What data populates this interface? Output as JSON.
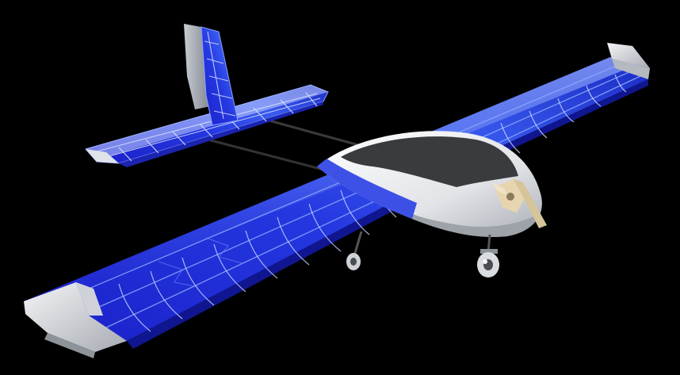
{
  "image": {
    "subject": "rc-airplane-cad-render",
    "background_color": "#000000"
  },
  "colors": {
    "skin_white": "#eef0f2",
    "skin_shadow": "#b9bcc2",
    "canopy_dark": "#3a3b3e",
    "translucent_blue": "#1f2fd6",
    "highlight_blue": "#5e8bff",
    "rib_light": "#b7c8ff",
    "boom_dark": "#3a3a3a",
    "wood_tan": "#e6d5ae"
  },
  "icons": {
    "fuselage": "fuselage-pod",
    "main_wing": "main-wing",
    "tailplane": "horizontal-stabilizer",
    "fin": "vertical-fin",
    "motor": "motor-mount",
    "gear": "landing-gear"
  }
}
